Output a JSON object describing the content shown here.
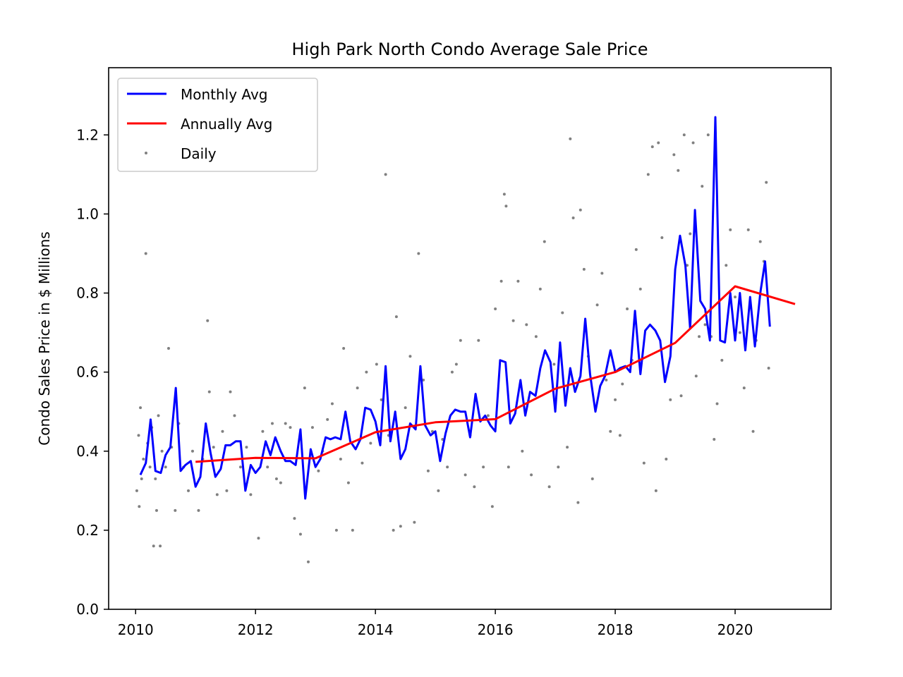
{
  "chart_data": {
    "type": "line",
    "title": "High Park North Condo Average Sale Price",
    "xlabel": "",
    "ylabel": "Condo Sales Price in $ Millions",
    "xlim": [
      2009.55,
      2021.6
    ],
    "ylim": [
      0.0,
      1.37
    ],
    "x_ticks": [
      2010,
      2012,
      2014,
      2016,
      2018,
      2020
    ],
    "y_ticks": [
      0.0,
      0.2,
      0.4,
      0.6,
      0.8,
      1.0,
      1.2
    ],
    "x_tick_labels": [
      "2010",
      "2012",
      "2014",
      "2016",
      "2018",
      "2020"
    ],
    "y_tick_labels": [
      "0.0",
      "0.2",
      "0.4",
      "0.6",
      "0.8",
      "1.0",
      "1.2"
    ],
    "grid": false,
    "legend": {
      "placement": "top-left",
      "entries": [
        "Monthly Avg",
        "Annually Avg",
        "Daily"
      ]
    },
    "colors": {
      "monthly": "#0000ff",
      "annual": "#ff0000",
      "daily": "#808080"
    },
    "series": [
      {
        "name": "Monthly Avg",
        "kind": "line",
        "x": [
          2010.08,
          2010.17,
          2010.25,
          2010.33,
          2010.42,
          2010.5,
          2010.58,
          2010.67,
          2010.75,
          2010.83,
          2010.92,
          2011.0,
          2011.08,
          2011.17,
          2011.25,
          2011.33,
          2011.42,
          2011.5,
          2011.58,
          2011.67,
          2011.75,
          2011.83,
          2011.92,
          2012.0,
          2012.08,
          2012.17,
          2012.25,
          2012.33,
          2012.42,
          2012.5,
          2012.58,
          2012.67,
          2012.75,
          2012.83,
          2012.92,
          2013.0,
          2013.08,
          2013.17,
          2013.25,
          2013.33,
          2013.42,
          2013.5,
          2013.58,
          2013.67,
          2013.75,
          2013.83,
          2013.92,
          2014.0,
          2014.08,
          2014.17,
          2014.25,
          2014.33,
          2014.42,
          2014.5,
          2014.58,
          2014.67,
          2014.75,
          2014.83,
          2014.92,
          2015.0,
          2015.08,
          2015.17,
          2015.25,
          2015.33,
          2015.42,
          2015.5,
          2015.58,
          2015.67,
          2015.75,
          2015.83,
          2015.92,
          2016.0,
          2016.08,
          2016.17,
          2016.25,
          2016.33,
          2016.42,
          2016.5,
          2016.58,
          2016.67,
          2016.75,
          2016.83,
          2016.92,
          2017.0,
          2017.08,
          2017.17,
          2017.25,
          2017.33,
          2017.42,
          2017.5,
          2017.58,
          2017.67,
          2017.75,
          2017.83,
          2017.92,
          2018.0,
          2018.08,
          2018.17,
          2018.25,
          2018.33,
          2018.42,
          2018.5,
          2018.58,
          2018.67,
          2018.75,
          2018.83,
          2018.92,
          2019.0,
          2019.08,
          2019.17,
          2019.25,
          2019.33,
          2019.42,
          2019.5,
          2019.58,
          2019.67,
          2019.75,
          2019.83,
          2019.92,
          2020.0,
          2020.08,
          2020.17,
          2020.25,
          2020.33,
          2020.42,
          2020.5,
          2020.58
        ],
        "y": [
          0.34,
          0.37,
          0.48,
          0.35,
          0.345,
          0.39,
          0.41,
          0.56,
          0.35,
          0.365,
          0.375,
          0.31,
          0.335,
          0.47,
          0.395,
          0.335,
          0.355,
          0.415,
          0.415,
          0.425,
          0.425,
          0.3,
          0.365,
          0.345,
          0.36,
          0.425,
          0.39,
          0.435,
          0.4,
          0.375,
          0.375,
          0.365,
          0.455,
          0.28,
          0.405,
          0.36,
          0.38,
          0.435,
          0.43,
          0.435,
          0.43,
          0.5,
          0.425,
          0.405,
          0.43,
          0.51,
          0.505,
          0.475,
          0.415,
          0.615,
          0.425,
          0.5,
          0.38,
          0.405,
          0.47,
          0.455,
          0.615,
          0.465,
          0.44,
          0.45,
          0.375,
          0.445,
          0.49,
          0.505,
          0.5,
          0.5,
          0.435,
          0.545,
          0.475,
          0.49,
          0.465,
          0.45,
          0.63,
          0.625,
          0.47,
          0.495,
          0.58,
          0.49,
          0.55,
          0.54,
          0.61,
          0.655,
          0.625,
          0.5,
          0.675,
          0.515,
          0.61,
          0.55,
          0.59,
          0.735,
          0.595,
          0.5,
          0.565,
          0.59,
          0.655,
          0.6,
          0.61,
          0.615,
          0.6,
          0.755,
          0.595,
          0.705,
          0.72,
          0.705,
          0.68,
          0.575,
          0.64,
          0.86,
          0.945,
          0.87,
          0.71,
          1.01,
          0.78,
          0.76,
          0.68,
          1.245,
          0.68,
          0.675,
          0.8,
          0.68,
          0.8,
          0.655,
          0.79,
          0.665,
          0.8,
          0.88,
          0.715
        ]
      },
      {
        "name": "Annually Avg",
        "kind": "line",
        "x": [
          2011.0,
          2012.0,
          2013.0,
          2014.0,
          2015.0,
          2016.0,
          2017.0,
          2018.0,
          2019.0,
          2020.0,
          2021.0
        ],
        "y": [
          0.373,
          0.383,
          0.382,
          0.448,
          0.473,
          0.481,
          0.558,
          0.6,
          0.674,
          0.817,
          0.772
        ]
      },
      {
        "name": "Daily",
        "kind": "scatter",
        "points": [
          [
            2010.02,
            0.3
          ],
          [
            2010.05,
            0.44
          ],
          [
            2010.06,
            0.26
          ],
          [
            2010.08,
            0.51
          ],
          [
            2010.1,
            0.33
          ],
          [
            2010.13,
            0.38
          ],
          [
            2010.17,
            0.9
          ],
          [
            2010.2,
            0.42
          ],
          [
            2010.24,
            0.36
          ],
          [
            2010.27,
            0.46
          ],
          [
            2010.3,
            0.16
          ],
          [
            2010.33,
            0.33
          ],
          [
            2010.35,
            0.25
          ],
          [
            2010.38,
            0.49
          ],
          [
            2010.41,
            0.16
          ],
          [
            2010.44,
            0.4
          ],
          [
            2010.5,
            0.36
          ],
          [
            2010.55,
            0.66
          ],
          [
            2010.6,
            0.41
          ],
          [
            2010.66,
            0.25
          ],
          [
            2010.72,
            0.47
          ],
          [
            2010.8,
            0.36
          ],
          [
            2010.88,
            0.3
          ],
          [
            2010.95,
            0.4
          ],
          [
            2011.05,
            0.25
          ],
          [
            2011.12,
            0.38
          ],
          [
            2011.2,
            0.73
          ],
          [
            2011.23,
            0.55
          ],
          [
            2011.3,
            0.41
          ],
          [
            2011.36,
            0.29
          ],
          [
            2011.45,
            0.45
          ],
          [
            2011.52,
            0.3
          ],
          [
            2011.58,
            0.55
          ],
          [
            2011.65,
            0.49
          ],
          [
            2011.75,
            0.36
          ],
          [
            2011.85,
            0.41
          ],
          [
            2011.92,
            0.29
          ],
          [
            2012.05,
            0.18
          ],
          [
            2012.12,
            0.45
          ],
          [
            2012.2,
            0.36
          ],
          [
            2012.28,
            0.47
          ],
          [
            2012.35,
            0.33
          ],
          [
            2012.42,
            0.32
          ],
          [
            2012.5,
            0.47
          ],
          [
            2012.58,
            0.46
          ],
          [
            2012.65,
            0.23
          ],
          [
            2012.75,
            0.19
          ],
          [
            2012.82,
            0.56
          ],
          [
            2012.88,
            0.12
          ],
          [
            2012.95,
            0.46
          ],
          [
            2013.05,
            0.35
          ],
          [
            2013.12,
            0.4
          ],
          [
            2013.2,
            0.48
          ],
          [
            2013.28,
            0.52
          ],
          [
            2013.35,
            0.2
          ],
          [
            2013.42,
            0.38
          ],
          [
            2013.47,
            0.66
          ],
          [
            2013.55,
            0.32
          ],
          [
            2013.62,
            0.2
          ],
          [
            2013.7,
            0.56
          ],
          [
            2013.78,
            0.37
          ],
          [
            2013.85,
            0.6
          ],
          [
            2013.92,
            0.42
          ],
          [
            2014.02,
            0.62
          ],
          [
            2014.1,
            0.53
          ],
          [
            2014.17,
            1.1
          ],
          [
            2014.22,
            0.44
          ],
          [
            2014.3,
            0.2
          ],
          [
            2014.35,
            0.74
          ],
          [
            2014.42,
            0.21
          ],
          [
            2014.5,
            0.51
          ],
          [
            2014.58,
            0.64
          ],
          [
            2014.65,
            0.22
          ],
          [
            2014.72,
            0.9
          ],
          [
            2014.8,
            0.58
          ],
          [
            2014.88,
            0.35
          ],
          [
            2014.95,
            0.45
          ],
          [
            2015.05,
            0.3
          ],
          [
            2015.12,
            0.43
          ],
          [
            2015.2,
            0.36
          ],
          [
            2015.28,
            0.6
          ],
          [
            2015.35,
            0.62
          ],
          [
            2015.42,
            0.68
          ],
          [
            2015.5,
            0.34
          ],
          [
            2015.58,
            0.44
          ],
          [
            2015.65,
            0.31
          ],
          [
            2015.72,
            0.68
          ],
          [
            2015.8,
            0.36
          ],
          [
            2015.88,
            0.49
          ],
          [
            2015.95,
            0.26
          ],
          [
            2016.0,
            0.76
          ],
          [
            2016.1,
            0.83
          ],
          [
            2016.15,
            1.05
          ],
          [
            2016.18,
            1.02
          ],
          [
            2016.22,
            0.36
          ],
          [
            2016.3,
            0.73
          ],
          [
            2016.38,
            0.83
          ],
          [
            2016.45,
            0.4
          ],
          [
            2016.52,
            0.72
          ],
          [
            2016.6,
            0.34
          ],
          [
            2016.68,
            0.69
          ],
          [
            2016.75,
            0.81
          ],
          [
            2016.82,
            0.93
          ],
          [
            2016.9,
            0.31
          ],
          [
            2016.98,
            0.62
          ],
          [
            2017.05,
            0.36
          ],
          [
            2017.12,
            0.75
          ],
          [
            2017.2,
            0.41
          ],
          [
            2017.25,
            1.19
          ],
          [
            2017.3,
            0.99
          ],
          [
            2017.38,
            0.27
          ],
          [
            2017.42,
            1.01
          ],
          [
            2017.48,
            0.86
          ],
          [
            2017.55,
            0.64
          ],
          [
            2017.62,
            0.33
          ],
          [
            2017.7,
            0.77
          ],
          [
            2017.78,
            0.85
          ],
          [
            2017.85,
            0.58
          ],
          [
            2017.92,
            0.45
          ],
          [
            2018.0,
            0.53
          ],
          [
            2018.08,
            0.44
          ],
          [
            2018.12,
            0.57
          ],
          [
            2018.2,
            0.76
          ],
          [
            2018.28,
            0.63
          ],
          [
            2018.35,
            0.91
          ],
          [
            2018.42,
            0.81
          ],
          [
            2018.48,
            0.37
          ],
          [
            2018.55,
            1.1
          ],
          [
            2018.62,
            1.17
          ],
          [
            2018.68,
            0.3
          ],
          [
            2018.72,
            1.18
          ],
          [
            2018.78,
            0.94
          ],
          [
            2018.85,
            0.38
          ],
          [
            2018.92,
            0.53
          ],
          [
            2018.98,
            1.15
          ],
          [
            2019.05,
            1.11
          ],
          [
            2019.1,
            0.54
          ],
          [
            2019.15,
            1.2
          ],
          [
            2019.2,
            0.87
          ],
          [
            2019.25,
            0.95
          ],
          [
            2019.3,
            1.18
          ],
          [
            2019.35,
            0.59
          ],
          [
            2019.4,
            0.69
          ],
          [
            2019.45,
            1.07
          ],
          [
            2019.5,
            0.72
          ],
          [
            2019.55,
            1.2
          ],
          [
            2019.6,
            0.69
          ],
          [
            2019.65,
            0.43
          ],
          [
            2019.7,
            0.52
          ],
          [
            2019.78,
            0.63
          ],
          [
            2019.85,
            0.87
          ],
          [
            2019.92,
            0.96
          ],
          [
            2020.0,
            0.79
          ],
          [
            2020.08,
            0.7
          ],
          [
            2020.15,
            0.56
          ],
          [
            2020.22,
            0.96
          ],
          [
            2020.3,
            0.45
          ],
          [
            2020.35,
            0.68
          ],
          [
            2020.42,
            0.93
          ],
          [
            2020.48,
            0.88
          ],
          [
            2020.52,
            1.08
          ],
          [
            2020.56,
            0.61
          ]
        ]
      }
    ]
  }
}
